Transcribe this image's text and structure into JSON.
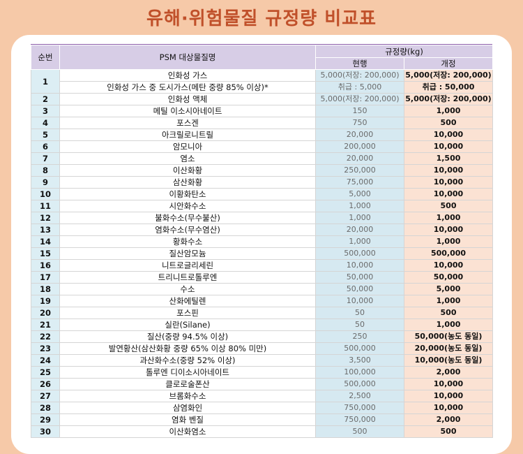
{
  "title": "유해·위험물질 규정량 비교표",
  "headers": {
    "no": "순번",
    "name": "PSM 대상물질명",
    "quantity": "규정량(kg)",
    "current": "현행",
    "revised": "개정"
  },
  "rows": [
    {
      "no": "1",
      "name": "인화성 가스",
      "current": "5,000(저장: 200,000)",
      "revised": "5,000(저장: 200,000)"
    },
    {
      "no": "",
      "name": "인화성 가스 중 도시가스(메탄 중량 85% 이상)*",
      "current": "취급 : 5,000",
      "revised": "취급 : 50,000"
    },
    {
      "no": "2",
      "name": "인화성 액체",
      "current": "5,000(저장: 200,000)",
      "revised": "5,000(저장: 200,000)"
    },
    {
      "no": "3",
      "name": "메틸 이소시아네이트",
      "current": "150",
      "revised": "1,000"
    },
    {
      "no": "4",
      "name": "포스겐",
      "current": "750",
      "revised": "500"
    },
    {
      "no": "5",
      "name": "아크릴로니트릴",
      "current": "20,000",
      "revised": "10,000"
    },
    {
      "no": "6",
      "name": "암모니아",
      "current": "200,000",
      "revised": "10,000"
    },
    {
      "no": "7",
      "name": "염소",
      "current": "20,000",
      "revised": "1,500"
    },
    {
      "no": "8",
      "name": "이산화황",
      "current": "250,000",
      "revised": "10,000"
    },
    {
      "no": "9",
      "name": "삼산화황",
      "current": "75,000",
      "revised": "10,000"
    },
    {
      "no": "10",
      "name": "이황화탄소",
      "current": "5,000",
      "revised": "10,000"
    },
    {
      "no": "11",
      "name": "시안화수소",
      "current": "1,000",
      "revised": "500"
    },
    {
      "no": "12",
      "name": "불화수소(무수불산)",
      "current": "1,000",
      "revised": "1,000"
    },
    {
      "no": "13",
      "name": "염화수소(무수염산)",
      "current": "20,000",
      "revised": "10,000"
    },
    {
      "no": "14",
      "name": "황화수소",
      "current": "1,000",
      "revised": "1,000"
    },
    {
      "no": "15",
      "name": "질산암모늄",
      "current": "500,000",
      "revised": "500,000"
    },
    {
      "no": "16",
      "name": "니트로글리세린",
      "current": "10,000",
      "revised": "10,000"
    },
    {
      "no": "17",
      "name": "트리니트로톨루엔",
      "current": "50,000",
      "revised": "50,000"
    },
    {
      "no": "18",
      "name": "수소",
      "current": "50,000",
      "revised": "5,000"
    },
    {
      "no": "19",
      "name": "산화에틸렌",
      "current": "10,000",
      "revised": "1,000"
    },
    {
      "no": "20",
      "name": "포스핀",
      "current": "50",
      "revised": "500"
    },
    {
      "no": "21",
      "name": "실란(Silane)",
      "current": "50",
      "revised": "1,000"
    },
    {
      "no": "22",
      "name": "질산(중량 94.5% 이상)",
      "current": "250",
      "revised": "50,000(농도 동일)"
    },
    {
      "no": "23",
      "name": "발연황산(삼산화황 중량 65% 이상 80% 미만)",
      "current": "500,000",
      "revised": "20,000(농도 동일)"
    },
    {
      "no": "24",
      "name": "과산화수소(중량 52% 이상)",
      "current": "3,500",
      "revised": "10,000(농도 동일)"
    },
    {
      "no": "25",
      "name": "톨루엔 디이소시아네이트",
      "current": "100,000",
      "revised": "2,000"
    },
    {
      "no": "26",
      "name": "클로로술폰산",
      "current": "500,000",
      "revised": "10,000"
    },
    {
      "no": "27",
      "name": "브롬화수소",
      "current": "2,500",
      "revised": "10,000"
    },
    {
      "no": "28",
      "name": "삼염화인",
      "current": "750,000",
      "revised": "10,000"
    },
    {
      "no": "29",
      "name": "염화 벤질",
      "current": "750,000",
      "revised": "2,000"
    },
    {
      "no": "30",
      "name": "이산화염소",
      "current": "500",
      "revised": "500"
    }
  ]
}
